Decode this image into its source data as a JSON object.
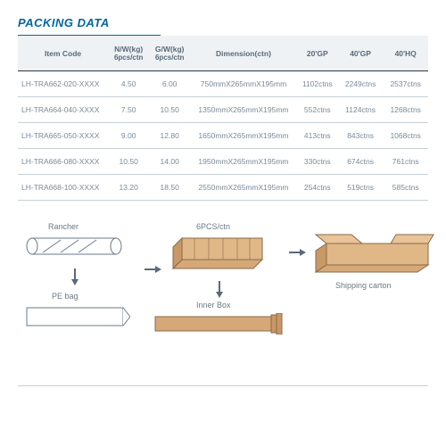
{
  "title": "PACKING DATA",
  "columns": [
    {
      "label": "Item Code",
      "sub": ""
    },
    {
      "label": "N/W(kg)",
      "sub": "6pcs/ctn"
    },
    {
      "label": "G/W(kg)",
      "sub": "6pcs/ctn"
    },
    {
      "label": "Dimension(ctn)",
      "sub": ""
    },
    {
      "label": "20'GP",
      "sub": ""
    },
    {
      "label": "40'GP",
      "sub": ""
    },
    {
      "label": "40'HQ",
      "sub": ""
    }
  ],
  "rows": [
    [
      "LH-TRA662-020-XXXX",
      "4.50",
      "6.00",
      "750mmX265mmX195mm",
      "1102ctns",
      "2249ctns",
      "2537ctns"
    ],
    [
      "LH-TRA664-040-XXXX",
      "7.50",
      "10.50",
      "1350mmX265mmX195mm",
      "552ctns",
      "1124ctns",
      "1268ctns"
    ],
    [
      "LH-TRA665-050-XXXX",
      "9.00",
      "12.80",
      "1650mmX265mmX195mm",
      "413ctns",
      "843ctns",
      "1068ctns"
    ],
    [
      "LH-TRA666-080-XXXX",
      "10.50",
      "14.00",
      "1950mmX265mmX195mm",
      "330ctns",
      "674ctns",
      "761ctns"
    ],
    [
      "LH-TRA668-100-XXXX",
      "13.20",
      "18.50",
      "2550mmX265mmX195mm",
      "254ctns",
      "519ctns",
      "585ctns"
    ]
  ],
  "diagram": {
    "rancher": "Rancher",
    "pebag": "PE bag",
    "sixpcs": "6PCS/ctn",
    "innerbox": "Inner Box",
    "shipping": "Shipping carton"
  },
  "colors": {
    "title": "#0066a4",
    "header_bg": "#eef2f5",
    "border_dark": "#2a3540",
    "border_light": "#c8d0d6",
    "text": "#5a6a78",
    "muted": "#7a8a98",
    "box_fill": "#d6a878",
    "box_stroke": "#8a6a48"
  }
}
